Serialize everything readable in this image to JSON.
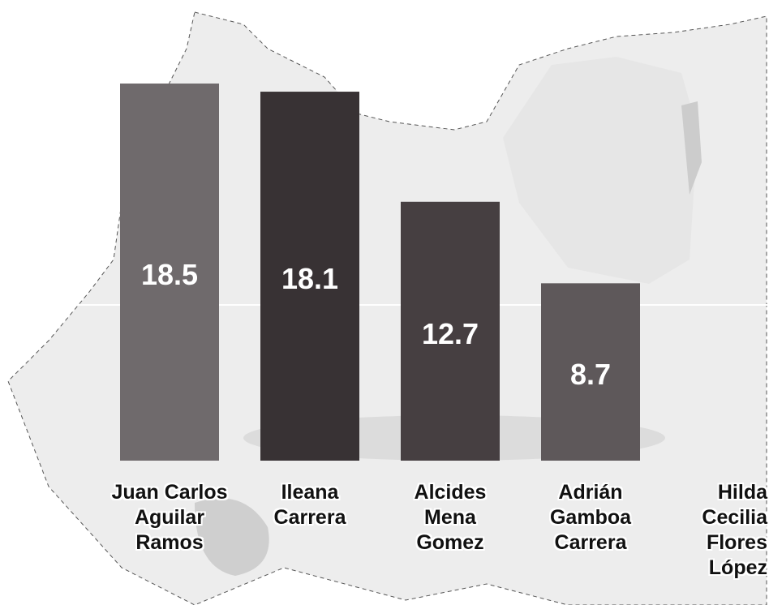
{
  "chart_data": {
    "type": "bar",
    "categories": [
      "Juan Carlos\nAguilar\nRamos",
      "Ileana\nCarrera",
      "Alcides\nMena\nGomez",
      "Adrián\nGamboa\nCarrera",
      "Hilda\nCecilia\nFlores\nLópez"
    ],
    "values": [
      18.5,
      18.1,
      12.7,
      8.7,
      null
    ],
    "colors": [
      "#6f6a6c",
      "#383234",
      "#463f41",
      "#5e585a",
      "#5e585a"
    ]
  }
}
